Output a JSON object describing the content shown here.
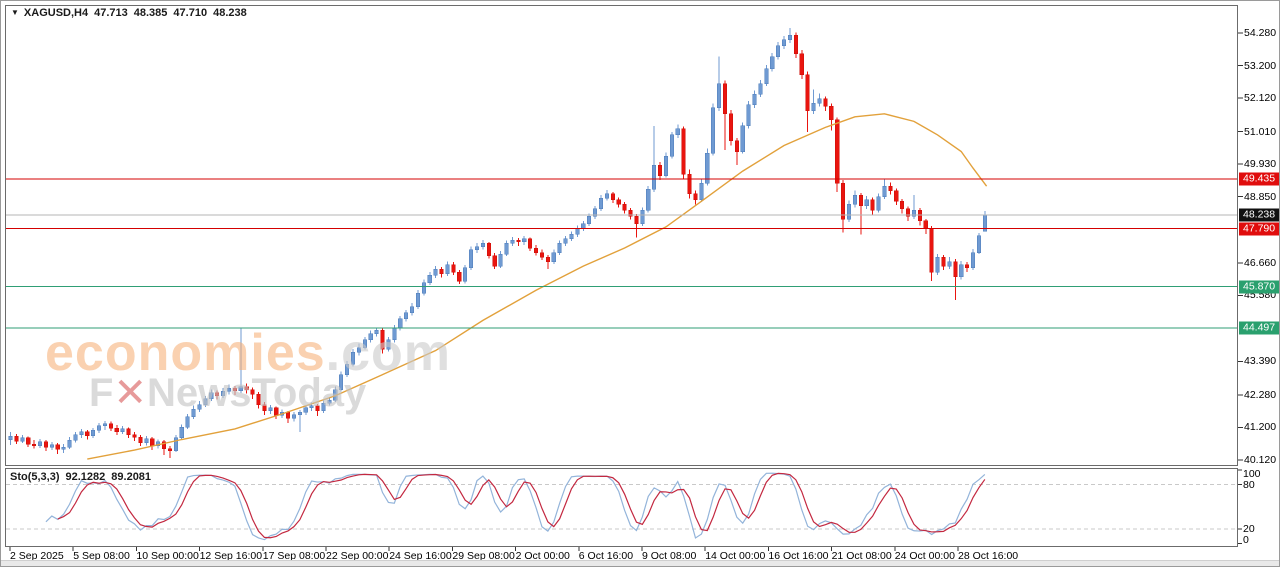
{
  "window": {
    "dropdown_icon": "▼",
    "title_symbol": "XAGUSD,H4",
    "open": "47.713",
    "high": "48.385",
    "low": "47.710",
    "close": "48.238"
  },
  "watermark": {
    "brand": "economies",
    "domain": ".com",
    "line2_prefix": "F",
    "line2_x": "✕",
    "line2_rest": "NewsToday"
  },
  "indicator": {
    "name": "Sto(5,3,3)",
    "main_value": "92.1282",
    "signal_value": "89.2081"
  },
  "price_axis": {
    "ticks": [
      "54.280",
      "53.200",
      "52.120",
      "51.010",
      "49.930",
      "48.850",
      "46.660",
      "45.580",
      "43.390",
      "42.280",
      "41.200",
      "40.120"
    ],
    "tags": [
      {
        "label": "49.435",
        "value": 49.435,
        "kind": "red"
      },
      {
        "label": "48.238",
        "value": 48.238,
        "kind": "black"
      },
      {
        "label": "47.790",
        "value": 47.79,
        "kind": "red"
      },
      {
        "label": "45.870",
        "value": 45.87,
        "kind": "green"
      },
      {
        "label": "44.497",
        "value": 44.497,
        "kind": "green"
      }
    ]
  },
  "time_axis": {
    "labels": [
      "2 Sep 2025",
      "5 Sep 08:00",
      "10 Sep 00:00",
      "12 Sep 16:00",
      "17 Sep 08:00",
      "22 Sep 00:00",
      "24 Sep 16:00",
      "29 Sep 08:00",
      "2 Oct 00:00",
      "6 Oct 16:00",
      "9 Oct 08:00",
      "14 Oct 00:00",
      "16 Oct 16:00",
      "21 Oct 08:00",
      "24 Oct 00:00",
      "28 Oct 16:00"
    ]
  },
  "colors": {
    "bull": "#6f9ad2",
    "bull_stroke": "#4d7cba",
    "bear": "#e9150f",
    "bear_stroke": "#cc0f0a",
    "ma": "#e2a13b",
    "line_red": "#d40000",
    "line_green": "#2f9e75",
    "line_gray": "#b5b5b5",
    "stoch_main": "#93b4da",
    "stoch_signal": "#c32840",
    "level_dash": "#c9c9c9",
    "tag_red": "#e00d0d",
    "tag_green": "#2aa06e",
    "tag_black": "#111111"
  },
  "chart_data": {
    "type": "candlestick",
    "symbol": "XAGUSD",
    "timeframe": "H4",
    "title": "XAGUSD,H4 47.713 48.385 47.710 48.238",
    "ylim": [
      39.95,
      55.2
    ],
    "grid": false,
    "last_ohlc": {
      "open": 47.713,
      "high": 48.385,
      "low": 47.71,
      "close": 48.238
    },
    "hlines": [
      {
        "price": 49.435,
        "role": "resistance",
        "color": "red"
      },
      {
        "price": 47.79,
        "role": "resistance",
        "color": "red"
      },
      {
        "price": 48.238,
        "role": "current-price",
        "color": "gray"
      },
      {
        "price": 45.87,
        "role": "support",
        "color": "green"
      },
      {
        "price": 44.497,
        "role": "support",
        "color": "green"
      }
    ],
    "candles": [
      [
        40.8,
        41.05,
        40.62,
        40.9
      ],
      [
        40.9,
        40.98,
        40.65,
        40.75
      ],
      [
        40.75,
        40.95,
        40.68,
        40.85
      ],
      [
        40.85,
        40.9,
        40.55,
        40.65
      ],
      [
        40.65,
        40.78,
        40.5,
        40.6
      ],
      [
        40.6,
        40.82,
        40.52,
        40.72
      ],
      [
        40.72,
        40.78,
        40.42,
        40.55
      ],
      [
        40.55,
        40.72,
        40.45,
        40.62
      ],
      [
        40.62,
        40.68,
        40.32,
        40.48
      ],
      [
        40.48,
        40.65,
        40.35,
        40.55
      ],
      [
        40.55,
        40.88,
        40.48,
        40.78
      ],
      [
        40.78,
        41.05,
        40.7,
        40.95
      ],
      [
        40.95,
        41.15,
        40.85,
        41.05
      ],
      [
        41.05,
        41.12,
        40.8,
        40.92
      ],
      [
        40.92,
        41.18,
        40.85,
        41.1
      ],
      [
        41.1,
        41.35,
        41.02,
        41.25
      ],
      [
        41.25,
        41.42,
        41.12,
        41.32
      ],
      [
        41.32,
        41.4,
        41.08,
        41.18
      ],
      [
        41.18,
        41.28,
        40.95,
        41.05
      ],
      [
        41.05,
        41.25,
        40.98,
        41.15
      ],
      [
        41.15,
        41.2,
        40.85,
        40.95
      ],
      [
        40.95,
        41.05,
        40.75,
        40.88
      ],
      [
        40.88,
        40.95,
        40.58,
        40.7
      ],
      [
        40.7,
        40.92,
        40.6,
        40.82
      ],
      [
        40.82,
        40.88,
        40.45,
        40.6
      ],
      [
        40.6,
        40.8,
        40.5,
        40.72
      ],
      [
        40.72,
        40.78,
        40.28,
        40.5
      ],
      [
        40.5,
        40.58,
        40.18,
        40.42
      ],
      [
        40.42,
        40.95,
        40.38,
        40.85
      ],
      [
        40.85,
        41.3,
        40.8,
        41.2
      ],
      [
        41.2,
        41.65,
        41.15,
        41.55
      ],
      [
        41.55,
        41.92,
        41.48,
        41.8
      ],
      [
        41.8,
        42.08,
        41.72,
        41.95
      ],
      [
        41.95,
        42.25,
        41.88,
        42.15
      ],
      [
        42.15,
        42.45,
        42.08,
        42.35
      ],
      [
        42.35,
        42.42,
        42.12,
        42.25
      ],
      [
        42.25,
        42.5,
        42.18,
        42.4
      ],
      [
        42.4,
        42.62,
        42.3,
        42.5
      ],
      [
        42.5,
        42.58,
        42.28,
        42.42
      ],
      [
        42.42,
        44.5,
        42.35,
        42.55
      ],
      [
        42.55,
        42.65,
        42.32,
        42.45
      ],
      [
        42.45,
        42.52,
        42.15,
        42.3
      ],
      [
        42.3,
        42.38,
        41.82,
        41.95
      ],
      [
        41.95,
        42.05,
        41.62,
        41.75
      ],
      [
        41.75,
        41.95,
        41.65,
        41.85
      ],
      [
        41.85,
        41.9,
        41.48,
        41.6
      ],
      [
        41.6,
        41.8,
        41.52,
        41.7
      ],
      [
        41.7,
        41.75,
        41.35,
        41.5
      ],
      [
        41.5,
        41.72,
        41.4,
        41.62
      ],
      [
        41.62,
        41.78,
        41.05,
        41.7
      ],
      [
        41.7,
        41.95,
        41.62,
        41.85
      ],
      [
        41.85,
        42.02,
        41.75,
        41.92
      ],
      [
        41.92,
        41.98,
        41.58,
        41.75
      ],
      [
        41.75,
        42.1,
        41.68,
        42.0
      ],
      [
        42.0,
        42.2,
        41.92,
        42.1
      ],
      [
        42.1,
        42.55,
        42.05,
        42.45
      ],
      [
        42.45,
        43.05,
        42.4,
        42.95
      ],
      [
        42.95,
        43.4,
        42.88,
        43.3
      ],
      [
        43.3,
        43.8,
        43.22,
        43.7
      ],
      [
        43.7,
        43.98,
        43.58,
        43.85
      ],
      [
        43.85,
        44.2,
        43.78,
        44.1
      ],
      [
        44.1,
        44.42,
        44.02,
        44.3
      ],
      [
        44.3,
        44.52,
        44.22,
        44.42
      ],
      [
        44.42,
        44.48,
        43.65,
        43.8
      ],
      [
        43.8,
        44.2,
        43.72,
        44.1
      ],
      [
        44.1,
        44.6,
        44.02,
        44.5
      ],
      [
        44.5,
        44.9,
        44.42,
        44.8
      ],
      [
        44.8,
        45.1,
        44.72,
        45.0
      ],
      [
        45.0,
        45.32,
        44.92,
        45.2
      ],
      [
        45.2,
        45.75,
        45.12,
        45.65
      ],
      [
        45.65,
        46.1,
        45.58,
        46.0
      ],
      [
        46.0,
        46.35,
        45.92,
        46.25
      ],
      [
        46.25,
        46.55,
        46.15,
        46.45
      ],
      [
        46.45,
        46.52,
        46.18,
        46.3
      ],
      [
        46.3,
        46.7,
        46.22,
        46.6
      ],
      [
        46.6,
        46.68,
        46.25,
        46.35
      ],
      [
        46.35,
        46.42,
        45.95,
        46.05
      ],
      [
        46.05,
        46.58,
        45.98,
        46.5
      ],
      [
        46.5,
        47.2,
        46.42,
        47.1
      ],
      [
        47.1,
        47.32,
        46.98,
        47.2
      ],
      [
        47.2,
        47.42,
        47.1,
        47.3
      ],
      [
        47.3,
        47.35,
        46.8,
        46.9
      ],
      [
        46.9,
        46.98,
        46.45,
        46.55
      ],
      [
        46.55,
        47.05,
        46.48,
        46.95
      ],
      [
        46.95,
        47.4,
        46.88,
        47.3
      ],
      [
        47.3,
        47.52,
        47.22,
        47.4
      ],
      [
        47.4,
        47.48,
        47.22,
        47.35
      ],
      [
        47.35,
        47.55,
        47.25,
        47.45
      ],
      [
        47.45,
        47.5,
        47.05,
        47.15
      ],
      [
        47.15,
        47.25,
        46.9,
        47.0
      ],
      [
        47.0,
        47.1,
        46.75,
        46.85
      ],
      [
        46.85,
        46.92,
        46.45,
        46.7
      ],
      [
        46.7,
        47.1,
        46.62,
        47.0
      ],
      [
        47.0,
        47.4,
        46.92,
        47.3
      ],
      [
        47.3,
        47.55,
        47.22,
        47.45
      ],
      [
        47.45,
        47.7,
        47.38,
        47.6
      ],
      [
        47.6,
        47.9,
        47.52,
        47.8
      ],
      [
        47.8,
        48.05,
        47.72,
        47.95
      ],
      [
        47.95,
        48.3,
        47.88,
        48.2
      ],
      [
        48.2,
        48.55,
        48.12,
        48.45
      ],
      [
        48.45,
        48.9,
        48.38,
        48.8
      ],
      [
        48.8,
        49.08,
        48.72,
        48.95
      ],
      [
        48.95,
        49.0,
        48.65,
        48.75
      ],
      [
        48.75,
        48.82,
        48.5,
        48.6
      ],
      [
        48.6,
        48.68,
        48.3,
        48.4
      ],
      [
        48.4,
        48.48,
        48.1,
        48.2
      ],
      [
        48.2,
        48.28,
        47.5,
        47.95
      ],
      [
        47.95,
        48.5,
        47.88,
        48.4
      ],
      [
        48.4,
        49.2,
        48.32,
        49.1
      ],
      [
        49.1,
        51.2,
        49.0,
        49.9
      ],
      [
        49.9,
        50.0,
        49.4,
        49.55
      ],
      [
        49.55,
        50.32,
        49.48,
        50.2
      ],
      [
        50.2,
        51.0,
        50.12,
        50.9
      ],
      [
        50.9,
        51.25,
        50.8,
        51.1
      ],
      [
        51.1,
        51.18,
        49.45,
        49.6
      ],
      [
        49.6,
        49.75,
        48.8,
        48.95
      ],
      [
        48.95,
        49.05,
        48.6,
        48.75
      ],
      [
        48.75,
        49.42,
        48.68,
        49.3
      ],
      [
        49.3,
        50.45,
        49.22,
        50.3
      ],
      [
        50.3,
        51.95,
        50.22,
        51.8
      ],
      [
        51.8,
        53.5,
        51.7,
        52.6
      ],
      [
        52.6,
        52.7,
        50.4,
        51.6
      ],
      [
        51.6,
        51.72,
        50.55,
        50.7
      ],
      [
        50.7,
        50.8,
        49.9,
        50.35
      ],
      [
        50.35,
        51.32,
        50.28,
        51.2
      ],
      [
        51.2,
        52.02,
        51.12,
        51.9
      ],
      [
        51.9,
        52.38,
        51.8,
        52.25
      ],
      [
        52.25,
        52.72,
        52.15,
        52.6
      ],
      [
        52.6,
        53.22,
        52.52,
        53.1
      ],
      [
        53.1,
        53.62,
        53.0,
        53.5
      ],
      [
        53.5,
        53.98,
        53.4,
        53.85
      ],
      [
        53.85,
        54.18,
        53.75,
        54.05
      ],
      [
        54.05,
        54.45,
        53.95,
        54.2
      ],
      [
        54.2,
        54.3,
        53.45,
        53.6
      ],
      [
        53.6,
        53.72,
        52.75,
        52.9
      ],
      [
        52.9,
        53.0,
        51.0,
        51.7
      ],
      [
        51.7,
        52.4,
        51.6,
        51.95
      ],
      [
        51.95,
        52.28,
        51.85,
        52.1
      ],
      [
        52.1,
        52.18,
        51.7,
        51.85
      ],
      [
        51.85,
        51.95,
        51.05,
        51.4
      ],
      [
        51.4,
        51.48,
        49.0,
        49.3
      ],
      [
        49.3,
        49.4,
        47.66,
        48.1
      ],
      [
        48.1,
        48.72,
        48.02,
        48.6
      ],
      [
        48.6,
        49.05,
        48.5,
        48.9
      ],
      [
        48.9,
        48.98,
        47.6,
        48.55
      ],
      [
        48.55,
        48.88,
        48.45,
        48.75
      ],
      [
        48.75,
        48.82,
        48.25,
        48.4
      ],
      [
        48.4,
        48.95,
        48.32,
        48.85
      ],
      [
        48.85,
        49.42,
        48.78,
        49.2
      ],
      [
        49.2,
        49.32,
        48.92,
        49.05
      ],
      [
        49.05,
        49.12,
        48.58,
        48.7
      ],
      [
        48.7,
        48.78,
        48.3,
        48.45
      ],
      [
        48.45,
        48.52,
        48.05,
        48.2
      ],
      [
        48.2,
        48.9,
        48.12,
        48.4
      ],
      [
        48.4,
        48.48,
        47.9,
        48.05
      ],
      [
        48.05,
        48.12,
        47.62,
        47.8
      ],
      [
        47.8,
        47.88,
        46.05,
        46.35
      ],
      [
        46.35,
        46.95,
        46.25,
        46.85
      ],
      [
        46.85,
        46.92,
        46.42,
        46.55
      ],
      [
        46.55,
        46.85,
        46.45,
        46.7
      ],
      [
        46.7,
        46.78,
        45.42,
        46.2
      ],
      [
        46.2,
        46.72,
        46.1,
        46.6
      ],
      [
        46.6,
        46.68,
        46.35,
        46.5
      ],
      [
        46.5,
        47.12,
        46.42,
        47.0
      ],
      [
        47.0,
        47.65,
        46.95,
        47.55
      ],
      [
        47.713,
        48.385,
        47.71,
        48.238
      ]
    ],
    "ma": {
      "name": "moving-average",
      "points": [
        [
          13,
          40.15
        ],
        [
          21,
          40.45
        ],
        [
          29,
          40.8
        ],
        [
          38,
          41.15
        ],
        [
          46,
          41.65
        ],
        [
          55,
          42.25
        ],
        [
          63,
          42.95
        ],
        [
          72,
          43.75
        ],
        [
          80,
          44.75
        ],
        [
          89,
          45.75
        ],
        [
          97,
          46.55
        ],
        [
          104,
          47.15
        ],
        [
          111,
          47.85
        ],
        [
          117,
          48.7
        ],
        [
          124,
          49.7
        ],
        [
          131,
          50.55
        ],
        [
          138,
          51.15
        ],
        [
          143,
          51.5
        ],
        [
          148,
          51.6
        ],
        [
          153,
          51.35
        ],
        [
          157,
          50.9
        ],
        [
          161,
          50.35
        ],
        [
          163,
          49.8
        ],
        [
          165.3,
          49.2
        ]
      ]
    },
    "stochastic": {
      "label": "Sto(5,3,3)",
      "k_period": 5,
      "slowing": 3,
      "d_period": 3,
      "main": 92.1282,
      "signal": 89.2081,
      "levels": [
        80,
        20
      ],
      "scale_labels": [
        "100",
        "80",
        "20",
        "0"
      ],
      "range": [
        0,
        100
      ]
    }
  }
}
